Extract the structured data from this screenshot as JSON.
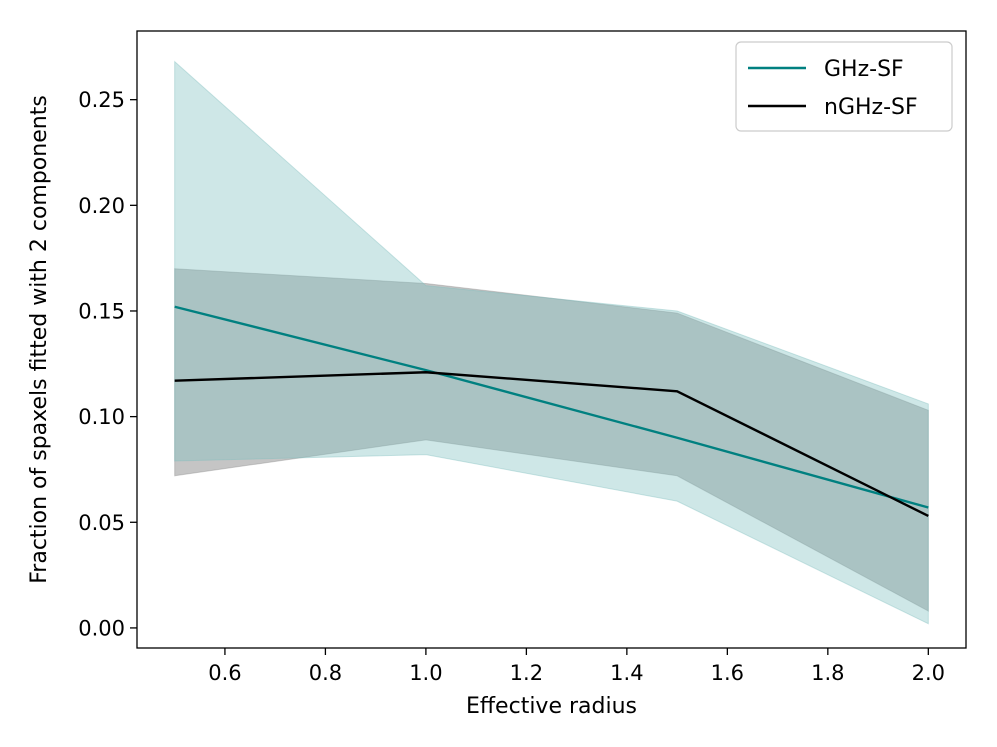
{
  "chart_data": {
    "type": "line",
    "title": "",
    "xlabel": "Effective radius",
    "ylabel": "Fraction of spaxels fitted with 2 components",
    "xlim": [
      0.425,
      2.075
    ],
    "ylim": [
      -0.0095,
      0.2825
    ],
    "xticks": [
      0.6,
      0.8,
      1.0,
      1.2,
      1.4,
      1.6,
      1.8,
      2.0
    ],
    "xtick_labels": [
      "0.6",
      "0.8",
      "1.0",
      "1.2",
      "1.4",
      "1.6",
      "1.8",
      "2.0"
    ],
    "yticks": [
      0.0,
      0.05,
      0.1,
      0.15,
      0.2,
      0.25
    ],
    "ytick_labels": [
      "0.00",
      "0.05",
      "0.10",
      "0.15",
      "0.20",
      "0.25"
    ],
    "grid": false,
    "legend_position": "upper right",
    "x": [
      0.5,
      1.0,
      1.5,
      2.0
    ],
    "series": [
      {
        "name": "GHz-SF",
        "color": "#008080",
        "band_color": "#7fbfbf",
        "values": [
          0.152,
          0.122,
          0.09,
          0.057
        ],
        "lower": [
          0.079,
          0.082,
          0.06,
          0.002
        ],
        "upper": [
          0.268,
          0.162,
          0.15,
          0.106
        ]
      },
      {
        "name": "nGHz-SF",
        "color": "#000000",
        "band_color": "#8c8c8c",
        "values": [
          0.117,
          0.121,
          0.112,
          0.053
        ],
        "lower": [
          0.072,
          0.089,
          0.072,
          0.008
        ],
        "upper": [
          0.17,
          0.163,
          0.149,
          0.103
        ]
      }
    ]
  }
}
